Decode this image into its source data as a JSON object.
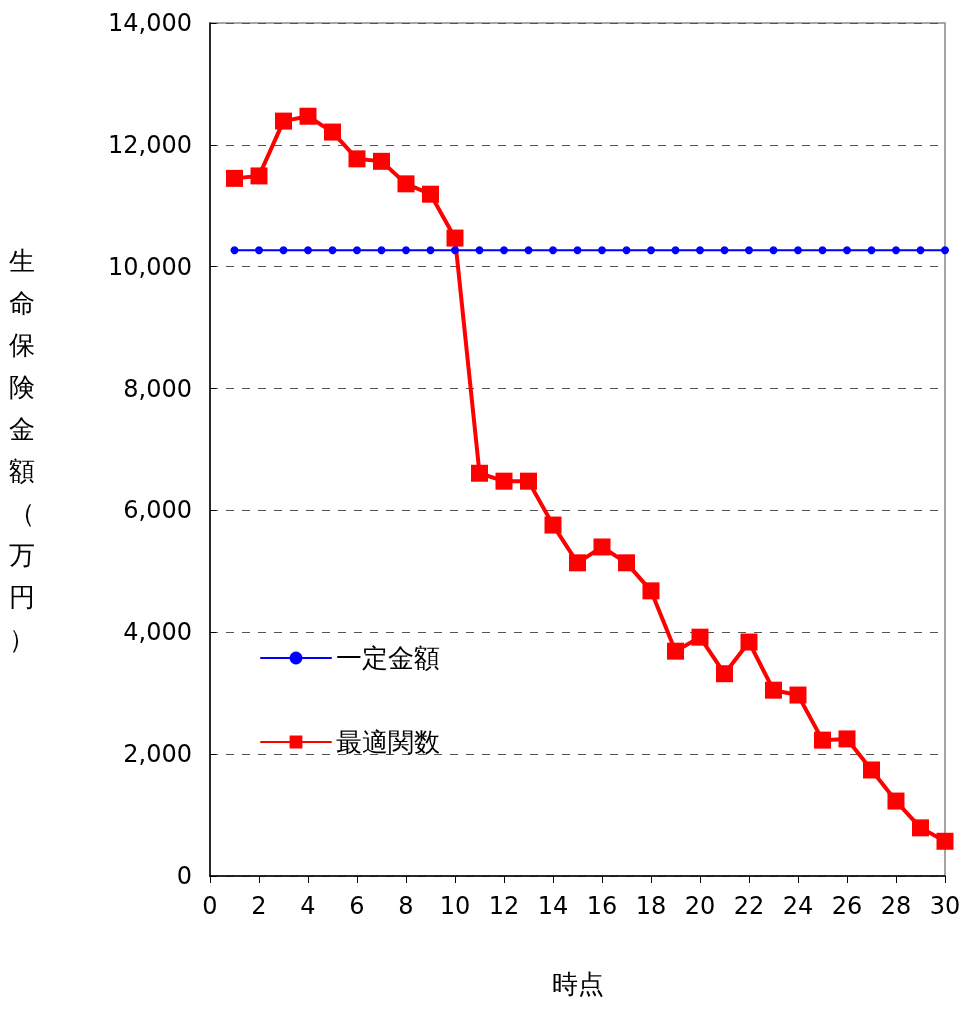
{
  "chart_data": {
    "type": "line",
    "xlabel": "時点",
    "ylabel": "生命保険金額（万円）",
    "x": [
      1,
      2,
      3,
      4,
      5,
      6,
      7,
      8,
      9,
      10,
      11,
      12,
      13,
      14,
      15,
      16,
      17,
      18,
      19,
      20,
      21,
      22,
      23,
      24,
      25,
      26,
      27,
      28,
      29,
      30
    ],
    "xlim": [
      0,
      30
    ],
    "xticks": [
      0,
      2,
      4,
      6,
      8,
      10,
      12,
      14,
      16,
      18,
      20,
      22,
      24,
      26,
      28,
      30
    ],
    "ylim": [
      0,
      14000
    ],
    "yticks": [
      0,
      {
        "value": 2000,
        "label": "2,000"
      },
      {
        "value": 4000,
        "label": "4,000"
      },
      {
        "value": 6000,
        "label": "6,000"
      },
      {
        "value": 8000,
        "label": "8,000"
      },
      {
        "value": 10000,
        "label": "10,000"
      },
      {
        "value": 12000,
        "label": "12,000"
      },
      {
        "value": 14000,
        "label": "14,000"
      }
    ],
    "grid": "y",
    "legend": "left",
    "line_style": "solid",
    "series": [
      {
        "name": "一定金額",
        "color": "#0000ff",
        "marker": "circle",
        "values": [
          10270,
          10270,
          10270,
          10270,
          10270,
          10270,
          10270,
          10270,
          10270,
          10270,
          10270,
          10270,
          10270,
          10270,
          10270,
          10270,
          10270,
          10270,
          10270,
          10270,
          10270,
          10270,
          10270,
          10270,
          10270,
          10270,
          10270,
          10270,
          10270,
          10270
        ]
      },
      {
        "name": "最適関数",
        "color": "#ff0000",
        "marker": "square",
        "values": [
          11450,
          11490,
          12390,
          12470,
          12210,
          11770,
          11730,
          11360,
          11190,
          10470,
          6610,
          6480,
          6480,
          5760,
          5140,
          5400,
          5140,
          4680,
          3690,
          3920,
          3320,
          3840,
          3050,
          2970,
          2230,
          2250,
          1740,
          1230,
          790,
          570
        ]
      }
    ]
  }
}
